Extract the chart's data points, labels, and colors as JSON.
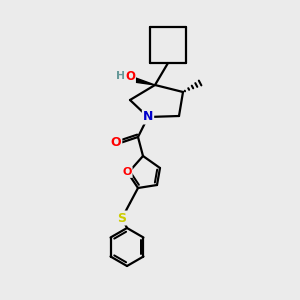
{
  "bg_color": "#ebebeb",
  "bond_color": "#000000",
  "bond_width": 1.6,
  "atom_colors": {
    "O": "#ff0000",
    "N": "#0000cc",
    "S": "#cccc00",
    "H_gray": "#669999",
    "C": "#000000"
  },
  "font_size_atom": 8.5,
  "figsize": [
    3.0,
    3.0
  ],
  "dpi": 100
}
